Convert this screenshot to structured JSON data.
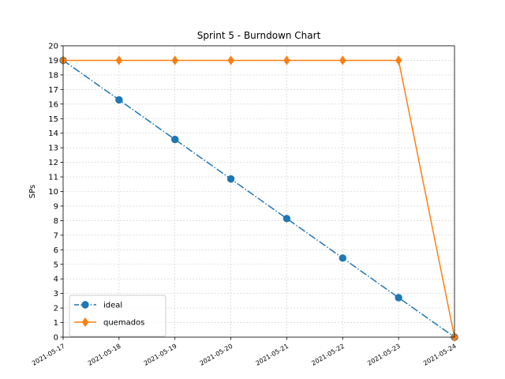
{
  "chart_data": {
    "type": "line",
    "title": "Sprint 5 - Burndown Chart",
    "xlabel": "",
    "ylabel": "SPs",
    "x": [
      "2021-05-17",
      "2021-05-18",
      "2021-05-19",
      "2021-05-20",
      "2021-05-21",
      "2021-05-22",
      "2021-05-23",
      "2021-05-24"
    ],
    "ylim": [
      0,
      20
    ],
    "yticks": [
      0,
      1,
      2,
      3,
      4,
      5,
      6,
      7,
      8,
      9,
      10,
      11,
      12,
      13,
      14,
      15,
      16,
      17,
      18,
      19,
      20
    ],
    "grid": true,
    "legend_position": "lower-left",
    "series": [
      {
        "name": "ideal",
        "color": "#1f77b4",
        "line_style": "dash-dot",
        "marker": "circle",
        "values": [
          19,
          16.29,
          13.57,
          10.86,
          8.14,
          5.43,
          2.71,
          0
        ]
      },
      {
        "name": "quemados",
        "color": "#ff7f0e",
        "line_style": "solid",
        "marker": "diamond",
        "values": [
          19,
          19,
          19,
          19,
          19,
          19,
          19,
          0
        ]
      }
    ]
  }
}
